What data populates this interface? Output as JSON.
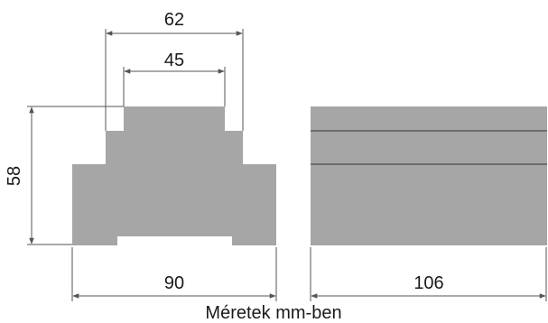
{
  "dimensions": {
    "top_width": "62",
    "inner_width": "45",
    "height": "58",
    "base_width": "90",
    "depth": "106"
  },
  "caption": "Méretek mm-ben",
  "colors": {
    "body": "#a6a6a6",
    "edges": "#6e6e6e",
    "dimension_lines": "#555555",
    "text": "#1a1a1a"
  }
}
